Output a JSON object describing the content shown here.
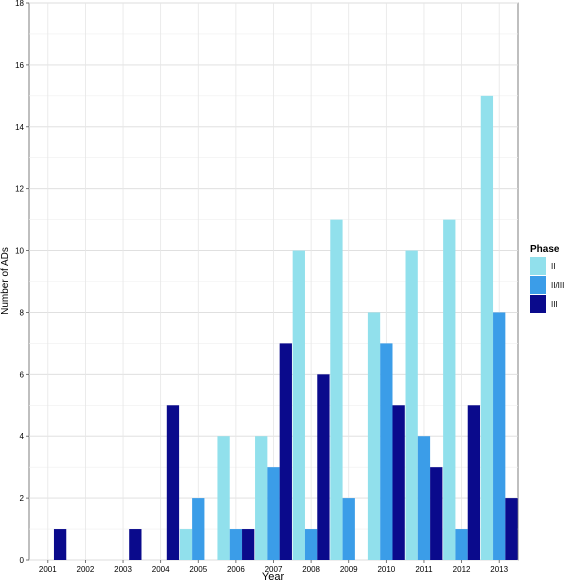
{
  "chart_data": {
    "type": "bar",
    "xlabel": "Year",
    "ylabel": "Number of ADs",
    "ylim": [
      0,
      18
    ],
    "yticks": [
      0,
      2,
      4,
      6,
      8,
      10,
      12,
      14,
      16,
      18
    ],
    "grid": true,
    "legend_placement": "right",
    "legend_title": "Phase",
    "categories": [
      "2001",
      "2002",
      "2003",
      "2004",
      "2005",
      "2006",
      "2007",
      "2008",
      "2009",
      "2010",
      "2011",
      "2012",
      "2013"
    ],
    "series": [
      {
        "name": "II",
        "color": "#91e0ec",
        "values": [
          0,
          0,
          0,
          0,
          1,
          4,
          4,
          10,
          11,
          8,
          10,
          11,
          15
        ]
      },
      {
        "name": "II/III",
        "color": "#3b9de8",
        "values": [
          0,
          0,
          0,
          0,
          2,
          1,
          3,
          1,
          2,
          7,
          4,
          1,
          8
        ]
      },
      {
        "name": "III",
        "color": "#0a0a8c",
        "values": [
          1,
          0,
          1,
          5,
          0,
          1,
          7,
          6,
          0,
          5,
          3,
          5,
          2
        ]
      }
    ]
  }
}
